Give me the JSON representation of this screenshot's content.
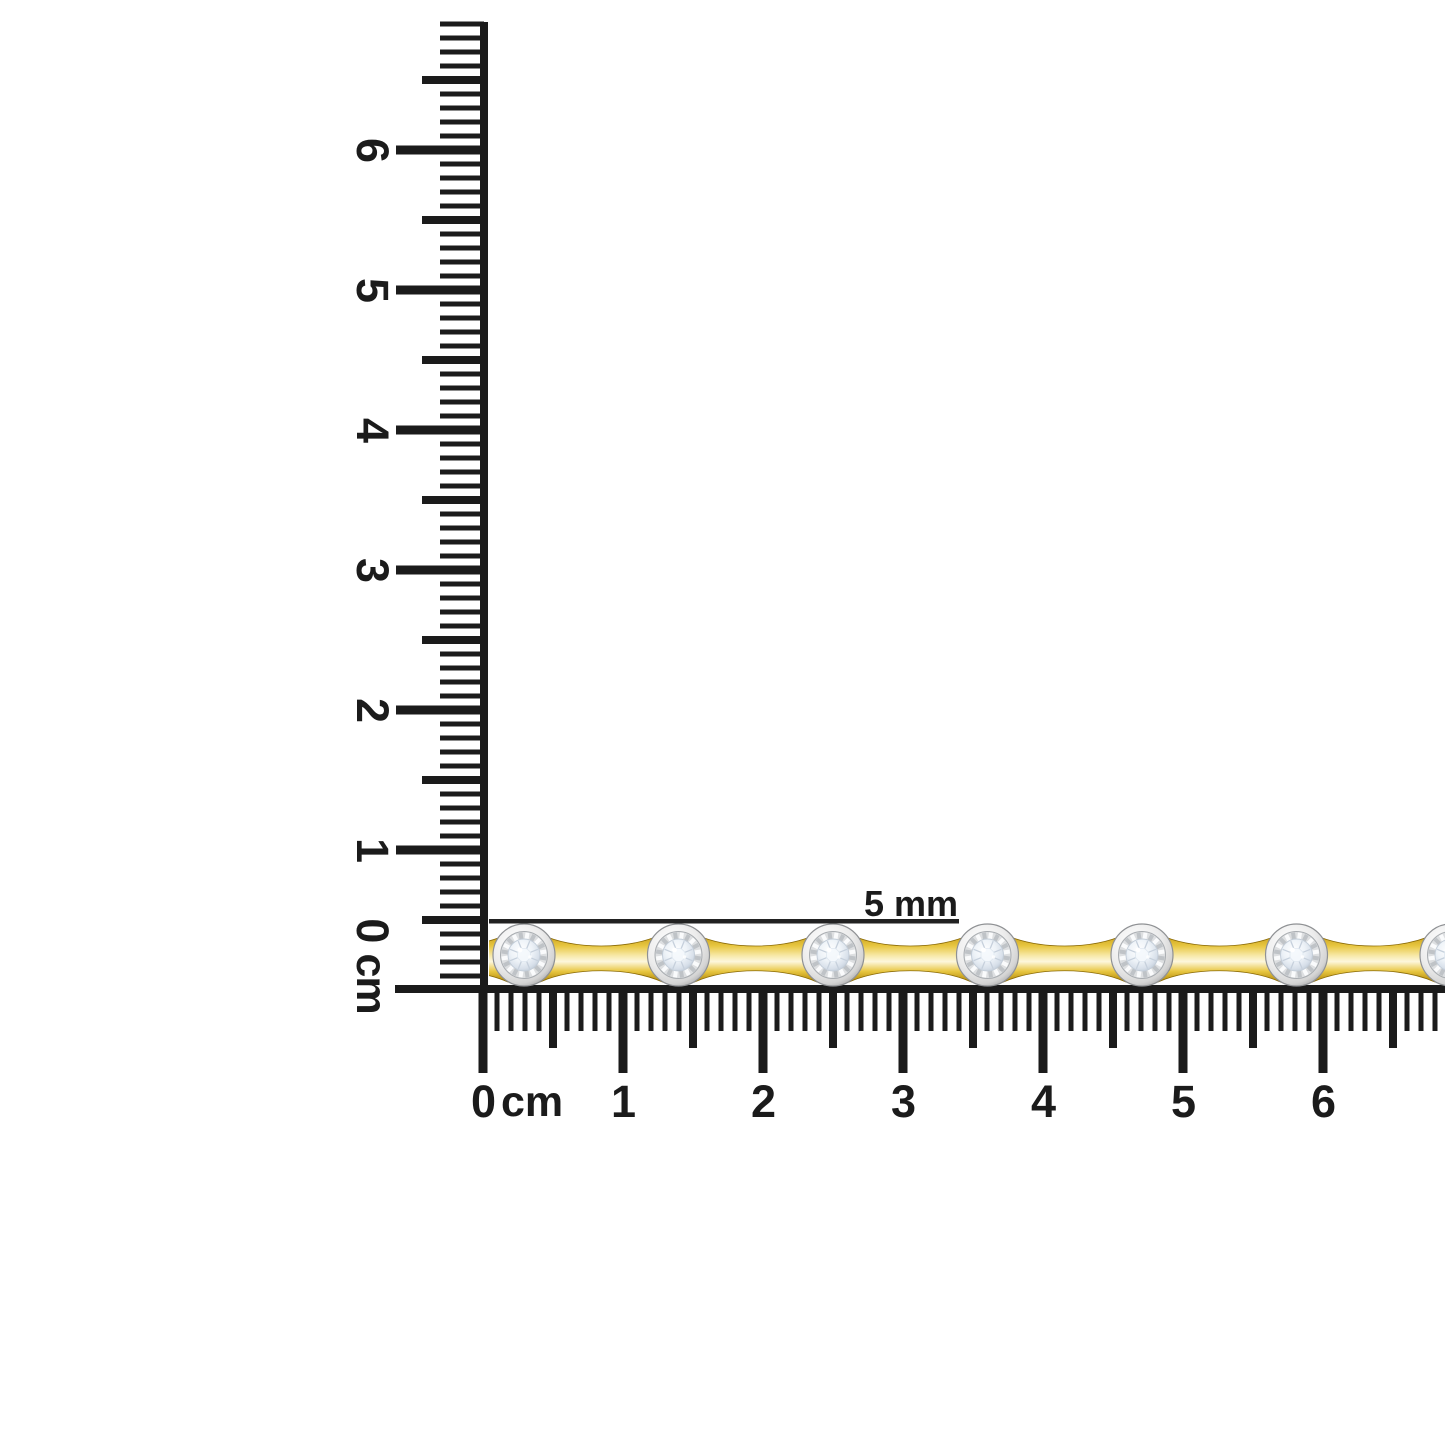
{
  "colors": {
    "background": "#ffffff",
    "ruler": "#1b1b1b",
    "annotation_line": "#222222"
  },
  "vertical_ruler": {
    "orientation": "vertical",
    "unit_label": "cm",
    "zero_label": "0",
    "number_labels": [
      "6",
      "5",
      "4",
      "3",
      "2",
      "1"
    ],
    "range_cm": [
      0,
      6.9
    ]
  },
  "horizontal_ruler": {
    "orientation": "horizontal",
    "unit_label": "cm",
    "number_labels": [
      "0",
      "1",
      "2",
      "3",
      "4",
      "5",
      "6"
    ],
    "range_cm": [
      0,
      6.8
    ]
  },
  "annotation": {
    "label": "5 mm"
  },
  "bracelet": {
    "item": "yellow-gold-diamond-station-bracelet",
    "station_count": 7,
    "colors": {
      "gold_dark": "#7c5e04",
      "gold_mid": "#c59a12",
      "gold_amber": "#e8c742",
      "gold_bright": "#f7e9a8",
      "gold_highlight": "#fdf7dd",
      "gold_lower": "#b68c0c",
      "bezel_light": "#ffffff",
      "bezel_mid": "#ececec",
      "bezel_dark": "#a0a0a0",
      "bezel_edge": "#8f9194",
      "plate": "#dddfe1",
      "plate_stripe_light": "#fafbfc",
      "plate_stripe_dark": "#bfc3c7",
      "plate_rim": "#a9adb1",
      "diamond_light": "#ffffff",
      "diamond_mid": "#eef3f8",
      "diamond_deep": "#d8e0ea",
      "diamond_dark": "#b6c2d0",
      "facet_line": "#c6d0dc",
      "diamond_edge": "#c3cdd8"
    }
  }
}
